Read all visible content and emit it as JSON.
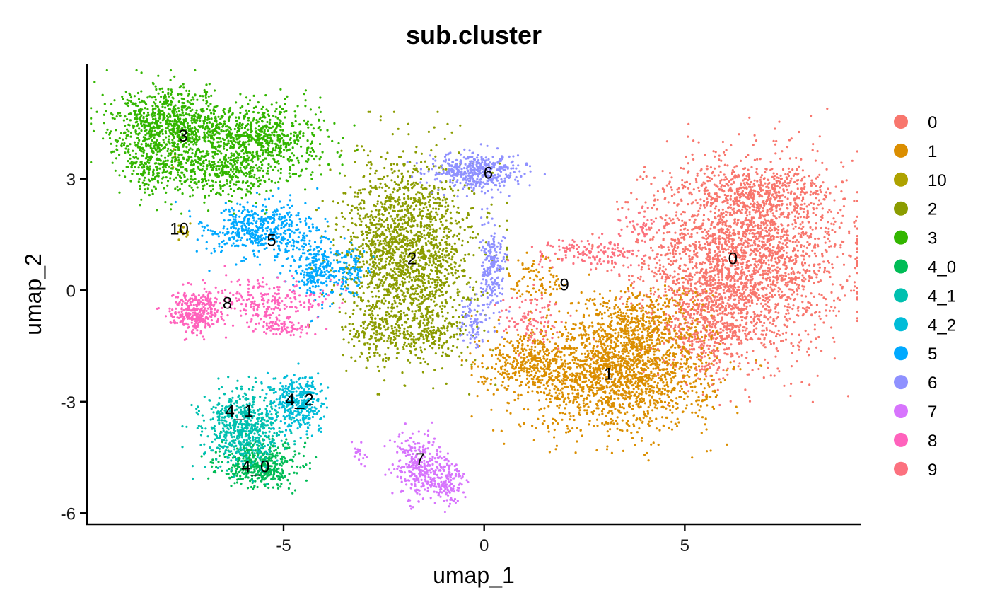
{
  "chart_data": {
    "type": "scatter",
    "title": "sub.cluster",
    "xlabel": "umap_1",
    "ylabel": "umap_2",
    "xlim": [
      -9.9,
      9.4
    ],
    "ylim": [
      -6.3,
      6.1
    ],
    "xticks": [
      -5,
      0,
      5
    ],
    "xtick_labels": [
      "-5",
      "0",
      "5"
    ],
    "yticks": [
      -6,
      -3,
      0,
      3
    ],
    "ytick_labels": [
      "-6",
      "-3",
      "0",
      "3"
    ],
    "grid": false,
    "legend_position": "right",
    "series": [
      {
        "name": "0",
        "color": "#F8766D",
        "label_at": [
          6.2,
          0.7
        ],
        "regions": [
          [
            6.5,
            0.9,
            2.0,
            2.1,
            2600
          ],
          [
            5.6,
            -0.9,
            1.0,
            1.1,
            500
          ],
          [
            6.8,
            2.6,
            1.5,
            0.6,
            300
          ]
        ]
      },
      {
        "name": "1",
        "color": "#DB8E00",
        "label_at": [
          3.1,
          -2.4
        ],
        "regions": [
          [
            3.3,
            -2.3,
            1.9,
            1.2,
            1700
          ],
          [
            1.0,
            -1.9,
            0.9,
            0.6,
            300
          ],
          [
            3.8,
            -1.0,
            1.3,
            0.9,
            500
          ],
          [
            1.4,
            0.3,
            0.6,
            0.6,
            80
          ]
        ]
      },
      {
        "name": "10",
        "color": "#AEA200",
        "label_at": [
          -7.6,
          1.5
        ],
        "regions": [
          [
            -7.5,
            1.6,
            0.12,
            0.15,
            18
          ],
          [
            -7.7,
            3.5,
            0.1,
            0.3,
            8
          ]
        ]
      },
      {
        "name": "2",
        "color": "#8B9C00",
        "label_at": [
          -1.8,
          0.7
        ],
        "regions": [
          [
            -1.9,
            1.0,
            1.3,
            2.0,
            1900
          ],
          [
            -2.7,
            -1.2,
            0.7,
            0.6,
            150
          ],
          [
            -1.3,
            -1.2,
            0.7,
            0.5,
            150
          ]
        ]
      },
      {
        "name": "3",
        "color": "#33B600",
        "label_at": [
          -7.5,
          4.0
        ],
        "regions": [
          [
            -7.8,
            4.4,
            1.2,
            0.8,
            900
          ],
          [
            -5.6,
            4.1,
            1.3,
            0.8,
            700
          ],
          [
            -6.6,
            3.2,
            1.4,
            0.6,
            400
          ],
          [
            -8.3,
            3.3,
            0.5,
            0.6,
            150
          ]
        ]
      },
      {
        "name": "4_0",
        "color": "#00BC56",
        "label_at": [
          -5.7,
          -4.9
        ],
        "regions": [
          [
            -5.6,
            -4.7,
            0.8,
            0.5,
            450
          ]
        ]
      },
      {
        "name": "4_1",
        "color": "#00C0AF",
        "label_at": [
          -6.1,
          -3.4
        ],
        "regions": [
          [
            -6.0,
            -3.7,
            0.8,
            0.8,
            650
          ]
        ]
      },
      {
        "name": "4_2",
        "color": "#00BCD8",
        "label_at": [
          -4.6,
          -3.1
        ],
        "regions": [
          [
            -4.6,
            -3.0,
            0.5,
            0.6,
            350
          ]
        ]
      },
      {
        "name": "5",
        "color": "#00A9FF",
        "label_at": [
          -5.3,
          1.2
        ],
        "regions": [
          [
            -5.6,
            1.6,
            1.1,
            0.6,
            500
          ],
          [
            -4.2,
            0.5,
            0.5,
            0.7,
            250
          ],
          [
            -3.3,
            0.5,
            0.4,
            0.5,
            100
          ]
        ]
      },
      {
        "name": "6",
        "color": "#8F91FF",
        "label_at": [
          0.1,
          3.0
        ],
        "regions": [
          [
            -0.2,
            3.2,
            0.9,
            0.4,
            450
          ],
          [
            0.2,
            0.6,
            0.3,
            1.0,
            200
          ],
          [
            -0.3,
            -0.9,
            0.25,
            0.5,
            80
          ]
        ]
      },
      {
        "name": "7",
        "color": "#D774FD",
        "label_at": [
          -1.6,
          -4.7
        ],
        "regions": [
          [
            -1.6,
            -4.8,
            0.5,
            0.7,
            300
          ],
          [
            -0.9,
            -5.1,
            0.35,
            0.5,
            150
          ],
          [
            -3.1,
            -4.4,
            0.2,
            0.2,
            20
          ]
        ]
      },
      {
        "name": "8",
        "color": "#FF62BC",
        "label_at": [
          -6.4,
          -0.5
        ],
        "regions": [
          [
            -7.2,
            -0.6,
            0.5,
            0.4,
            300
          ],
          [
            -5.5,
            -0.3,
            1.2,
            0.5,
            250
          ],
          [
            -5.0,
            -1.0,
            0.6,
            0.2,
            80
          ]
        ]
      },
      {
        "name": "9",
        "color": "#FC717F",
        "label_at": [
          2.0,
          0.0
        ],
        "regions": [
          [
            2.6,
            1.0,
            1.2,
            0.3,
            150
          ],
          [
            1.2,
            -0.8,
            0.6,
            0.6,
            100
          ],
          [
            3.9,
            1.8,
            0.4,
            0.3,
            40
          ]
        ]
      }
    ]
  }
}
